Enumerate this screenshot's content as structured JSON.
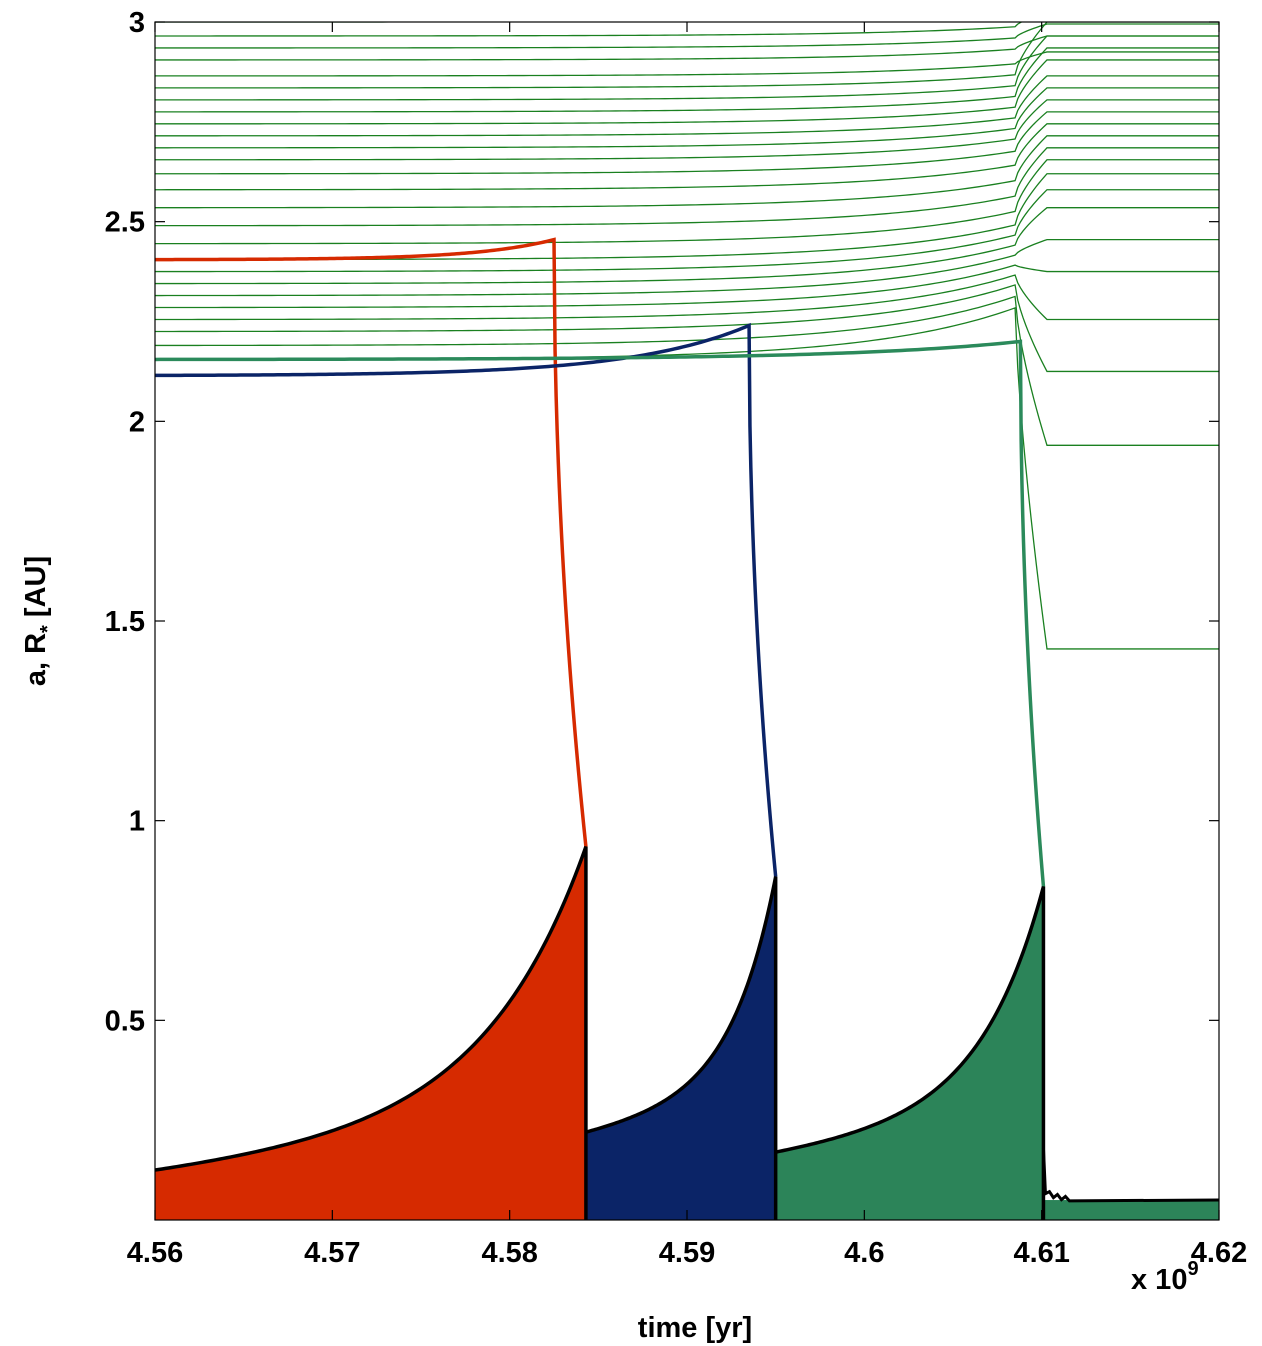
{
  "chart_data": {
    "type": "line",
    "xlabel": "time [yr]",
    "ylabel": "a, R* [AU]",
    "ylabel_parts": {
      "before": "a, R",
      "subscript": "*",
      "after": " [AU]"
    },
    "x_multiplier": {
      "base": "x 10",
      "exponent": "9"
    },
    "xlim": [
      4.56,
      4.62
    ],
    "ylim": [
      0.0,
      3.0
    ],
    "x_ticks": [
      4.56,
      4.57,
      4.58,
      4.59,
      4.6,
      4.61,
      4.62
    ],
    "x_tick_labels": [
      "4.56",
      "4.57",
      "4.58",
      "4.59",
      "4.6",
      "4.61",
      "4.62"
    ],
    "y_ticks": [
      0.5,
      1.0,
      1.5,
      2.0,
      2.5,
      3.0
    ],
    "y_tick_labels": [
      "0.5",
      "1",
      "1.5",
      "2",
      "2.5",
      "3"
    ],
    "grid": false,
    "colors": {
      "red": "#d62a00",
      "blue": "#0b2467",
      "green_fill": "#2c8459",
      "green_line": "#2b8a5b",
      "thin_green": "#1a8020",
      "stellar_radius": "#000000"
    },
    "stellar_radius_segments": [
      {
        "name": "red",
        "t_start": 4.56,
        "t_end": 4.5843,
        "r_start": 0.125,
        "r_end": 0.935
      },
      {
        "name": "blue",
        "t_start": 4.5843,
        "t_end": 4.595,
        "r_start": 0.22,
        "r_end": 0.86
      },
      {
        "name": "green",
        "t_start": 4.595,
        "t_end": 4.6101,
        "r_start": 0.17,
        "r_end": 0.835
      }
    ],
    "stellar_radius_remnant": {
      "t_start": 4.6101,
      "t_end": 4.62,
      "r": 0.05
    },
    "orbit_red": {
      "a0": 2.405,
      "a_peak": 2.455,
      "t_peak": 4.5825,
      "t_engulf": 4.5843
    },
    "orbit_blue": {
      "a0": 2.115,
      "a_peak": 2.24,
      "t_peak": 4.5935,
      "t_engulf": 4.595
    },
    "orbit_green": {
      "a0": 2.155,
      "a_peak": 2.2,
      "t_peak": 4.6088,
      "t_engulf": 4.6101
    },
    "thin_orbits_initial_a": [
      2.155,
      2.19,
      2.225,
      2.255,
      2.285,
      2.315,
      2.345,
      2.375,
      2.405,
      2.445,
      2.49,
      2.535,
      2.58,
      2.62,
      2.655,
      2.685,
      2.715,
      2.745,
      2.775,
      2.805,
      2.835,
      2.865,
      2.905,
      2.935,
      2.965,
      3.0
    ],
    "thin_orbits_final_a": [
      1.43,
      1.94,
      2.125,
      2.255,
      2.375,
      2.455,
      2.535,
      2.58,
      2.62,
      2.655,
      2.685,
      2.715,
      2.745,
      2.775,
      2.805,
      2.835,
      2.865,
      2.905,
      2.935,
      2.965,
      3.0
    ]
  }
}
